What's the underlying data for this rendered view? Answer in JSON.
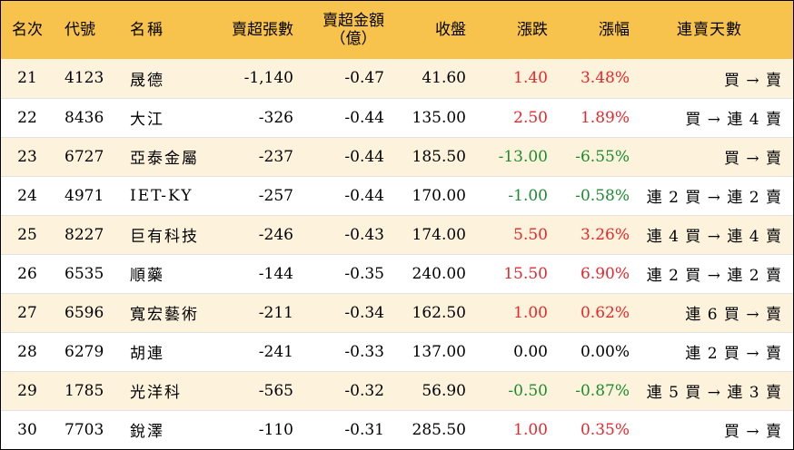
{
  "colors": {
    "header_bg": "#f8c34c",
    "row_alt_bg": "#fdf3dc",
    "up": "#e8262b",
    "down": "#1a8c2f",
    "flat": "#000000"
  },
  "header": {
    "rank": "名次",
    "code": "代號",
    "name": "名稱",
    "net_sell_shares": "賣超張數",
    "net_sell_amount_line1": "賣超金額",
    "net_sell_amount_line2": "（億）",
    "close": "收盤",
    "change": "漲跌",
    "change_pct": "漲幅",
    "streak": "連賣天數"
  },
  "rows": [
    {
      "rank": "21",
      "code": "4123",
      "name": "晟德",
      "shares": "-1,140",
      "amount": "-0.47",
      "close": "41.60",
      "change": "1.40",
      "pct": "3.48%",
      "dir": "up",
      "streak": "買 → 賣"
    },
    {
      "rank": "22",
      "code": "8436",
      "name": "大江",
      "shares": "-326",
      "amount": "-0.44",
      "close": "135.00",
      "change": "2.50",
      "pct": "1.89%",
      "dir": "up",
      "streak": "買 → 連 4 賣"
    },
    {
      "rank": "23",
      "code": "6727",
      "name": "亞泰金屬",
      "shares": "-237",
      "amount": "-0.44",
      "close": "185.50",
      "change": "-13.00",
      "pct": "-6.55%",
      "dir": "down",
      "streak": "買 → 賣"
    },
    {
      "rank": "24",
      "code": "4971",
      "name": "IET-KY",
      "shares": "-257",
      "amount": "-0.44",
      "close": "170.00",
      "change": "-1.00",
      "pct": "-0.58%",
      "dir": "down",
      "streak": "連 2 買 → 連 2 賣"
    },
    {
      "rank": "25",
      "code": "8227",
      "name": "巨有科技",
      "shares": "-246",
      "amount": "-0.43",
      "close": "174.00",
      "change": "5.50",
      "pct": "3.26%",
      "dir": "up",
      "streak": "連 4 買 → 連 4 賣"
    },
    {
      "rank": "26",
      "code": "6535",
      "name": "順藥",
      "shares": "-144",
      "amount": "-0.35",
      "close": "240.00",
      "change": "15.50",
      "pct": "6.90%",
      "dir": "up",
      "streak": "連 2 買 → 連 2 賣"
    },
    {
      "rank": "27",
      "code": "6596",
      "name": "寬宏藝術",
      "shares": "-211",
      "amount": "-0.34",
      "close": "162.50",
      "change": "1.00",
      "pct": "0.62%",
      "dir": "up",
      "streak": "連 6 買 → 賣"
    },
    {
      "rank": "28",
      "code": "6279",
      "name": "胡連",
      "shares": "-241",
      "amount": "-0.33",
      "close": "137.00",
      "change": "0.00",
      "pct": "0.00%",
      "dir": "flat",
      "streak": "連 2 買 → 賣"
    },
    {
      "rank": "29",
      "code": "1785",
      "name": "光洋科",
      "shares": "-565",
      "amount": "-0.32",
      "close": "56.90",
      "change": "-0.50",
      "pct": "-0.87%",
      "dir": "down",
      "streak": "連 5 買 → 連 3 賣"
    },
    {
      "rank": "30",
      "code": "7703",
      "name": "銳澤",
      "shares": "-110",
      "amount": "-0.31",
      "close": "285.50",
      "change": "1.00",
      "pct": "0.35%",
      "dir": "up",
      "streak": "買 → 賣"
    }
  ]
}
